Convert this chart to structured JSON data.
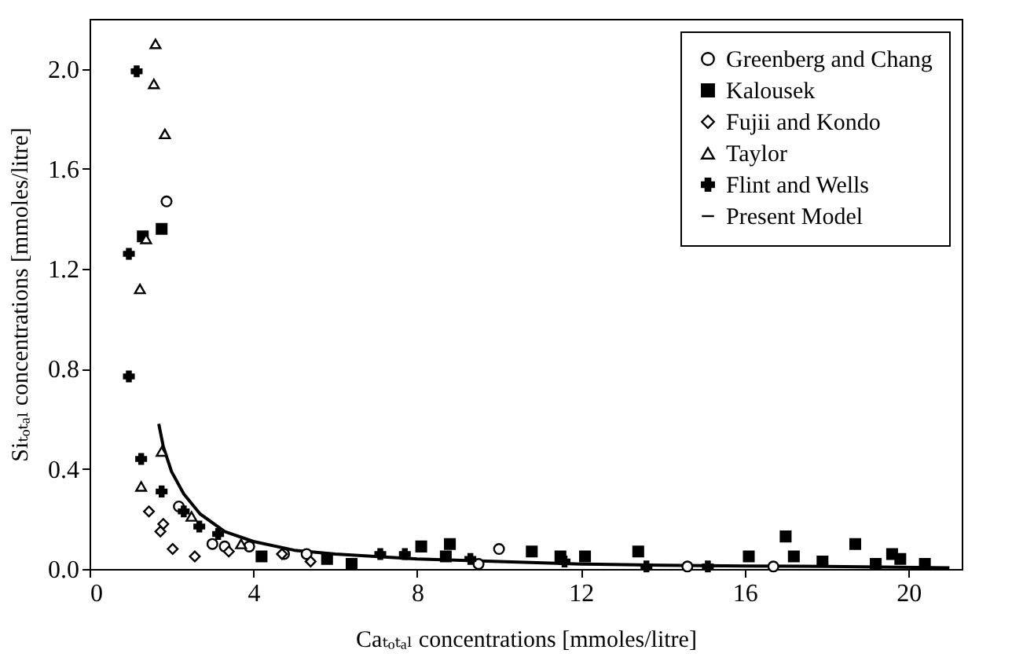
{
  "chart_data": {
    "type": "scatter",
    "xlabel": "Caₜₒₜₐₗ concentrations [mmoles/litre]",
    "ylabel": "Siₜₒₜₐₗ concentrations [mmoles/litre]",
    "xlim": [
      0,
      21.3
    ],
    "ylim": [
      0,
      2.2
    ],
    "xticks": [
      0,
      4,
      8,
      12,
      16,
      20
    ],
    "yticks": [
      {
        "value": 0,
        "label": "0.0"
      },
      0.4,
      0.8,
      1.2,
      1.6,
      {
        "value": 2,
        "label": "2.0"
      }
    ],
    "grid": false,
    "legend": "top right",
    "series": [
      {
        "name": "Greenberg and Chang",
        "color": "#000000",
        "marker": "circle",
        "x": [
          1.88,
          2.18,
          3.0,
          3.3,
          3.9,
          4.75,
          5.3,
          9.5,
          10.0,
          14.6,
          16.7
        ],
        "values": [
          1.47,
          0.25,
          0.1,
          0.09,
          0.09,
          0.06,
          0.06,
          0.02,
          0.08,
          0.01,
          0.01
        ]
      },
      {
        "name": "Kalousek",
        "color": "#000000",
        "marker": "square",
        "x": [
          1.3,
          1.76,
          4.2,
          5.8,
          6.4,
          8.1,
          8.8,
          8.7,
          10.8,
          11.5,
          12.1,
          13.4,
          16.1,
          17.0,
          17.2,
          17.9,
          18.7,
          19.2,
          19.6,
          19.8,
          20.4
        ],
        "values": [
          1.33,
          1.36,
          0.05,
          0.04,
          0.02,
          0.09,
          0.1,
          0.05,
          0.07,
          0.05,
          0.05,
          0.07,
          0.05,
          0.13,
          0.05,
          0.03,
          0.1,
          0.02,
          0.06,
          0.04,
          0.02
        ]
      },
      {
        "name": "Fujii and Kondo",
        "color": "#000000",
        "marker": "diamond",
        "x": [
          1.45,
          1.8,
          1.73,
          2.03,
          2.57,
          3.4,
          4.7,
          5.4
        ],
        "values": [
          0.23,
          0.18,
          0.15,
          0.08,
          0.05,
          0.07,
          0.06,
          0.03
        ]
      },
      {
        "name": "Taylor",
        "color": "#000000",
        "marker": "triangle",
        "x": [
          1.61,
          1.57,
          1.84,
          1.38,
          1.23,
          1.76,
          1.26,
          2.49,
          3.7
        ],
        "values": [
          2.1,
          1.94,
          1.74,
          1.32,
          1.12,
          0.47,
          0.33,
          0.21,
          0.1
        ]
      },
      {
        "name": "Flint and Wells",
        "color": "#000000",
        "marker": "cross",
        "x": [
          1.15,
          0.96,
          0.96,
          1.26,
          1.76,
          2.3,
          2.68,
          3.14,
          7.1,
          7.7,
          9.3,
          11.6,
          13.6,
          15.1
        ],
        "values": [
          1.99,
          1.26,
          0.77,
          0.44,
          0.31,
          0.23,
          0.17,
          0.14,
          0.06,
          0.06,
          0.04,
          0.03,
          0.01,
          0.01
        ]
      },
      {
        "name": "Present Model",
        "type": "line",
        "color": "#000000",
        "line_style": "solid",
        "x": [
          1.69,
          1.8,
          2.0,
          2.3,
          2.7,
          3.3,
          4,
          5,
          6,
          8,
          10,
          12,
          14,
          16,
          18,
          21
        ],
        "values": [
          0.58,
          0.49,
          0.39,
          0.3,
          0.22,
          0.15,
          0.11,
          0.075,
          0.06,
          0.04,
          0.03,
          0.02,
          0.015,
          0.012,
          0.01,
          0.005
        ]
      }
    ]
  }
}
